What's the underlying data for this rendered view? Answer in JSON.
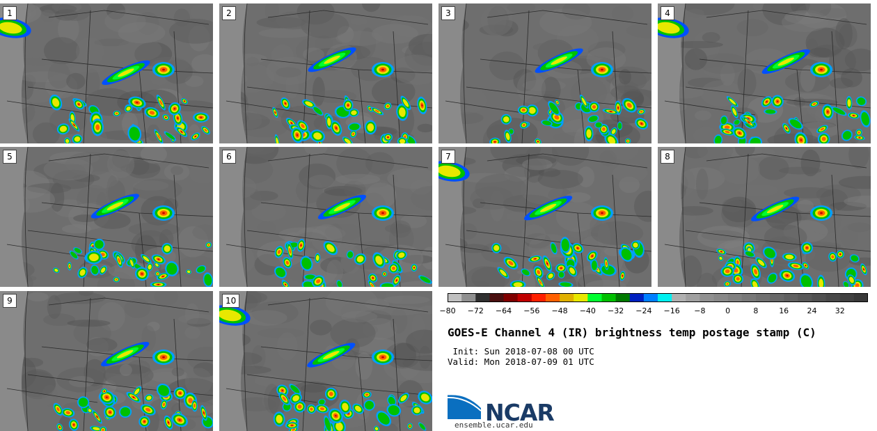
{
  "panels": [
    {
      "label": "1"
    },
    {
      "label": "2"
    },
    {
      "label": "3"
    },
    {
      "label": "4"
    },
    {
      "label": "5"
    },
    {
      "label": "6"
    },
    {
      "label": "7"
    },
    {
      "label": "8"
    },
    {
      "label": "9"
    },
    {
      "label": "10"
    }
  ],
  "colorbar": {
    "colors": [
      "#c0c0c0",
      "#909090",
      "#303030",
      "#4a1010",
      "#800000",
      "#c00000",
      "#ff2000",
      "#ff6000",
      "#e0b000",
      "#e8e800",
      "#00ff30",
      "#00c000",
      "#007a00",
      "#0020c0",
      "#0080ff",
      "#00f0f0",
      "#b0b0b0",
      "#a0a0a0",
      "#909090",
      "#888888",
      "#808080",
      "#787878",
      "#707070",
      "#686868",
      "#606060",
      "#585858",
      "#505050",
      "#484848",
      "#404040",
      "#383838"
    ],
    "ticks": [
      "-80",
      "-72",
      "-64",
      "-56",
      "-48",
      "-40",
      "-32",
      "-24",
      "-16",
      "-8",
      "0",
      "8",
      "16",
      "24",
      "32"
    ]
  },
  "title": "GOES-E Channel 4 (IR) brightness temp postage stamp (C)",
  "init": " Init: Sun 2018-07-08 00 UTC",
  "valid": "Valid: Mon 2018-07-09 01 UTC",
  "logo": {
    "name": "NCAR",
    "url": "ensemble.ucar.edu"
  }
}
